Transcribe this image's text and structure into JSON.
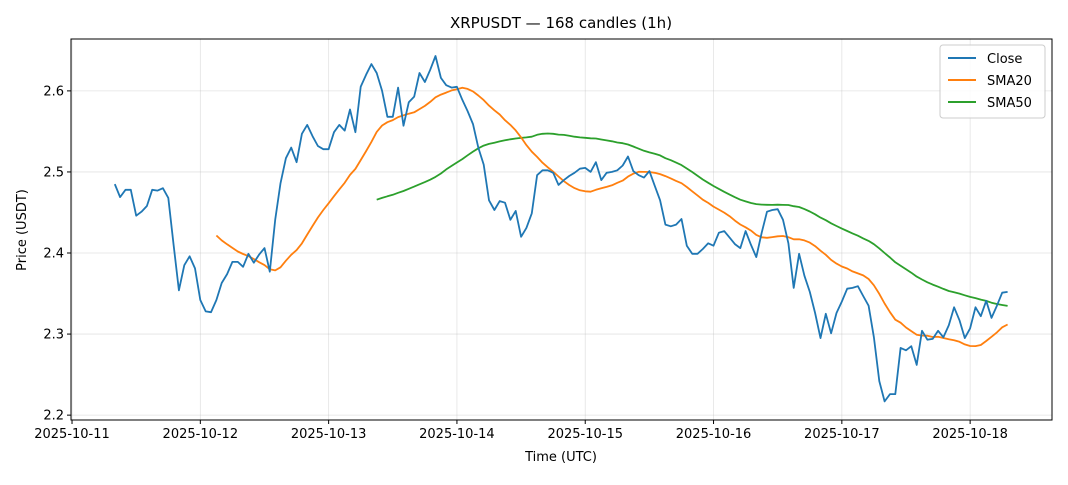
{
  "chart_data": {
    "type": "line",
    "title": "XRPUSDT — 168 candles (1h)",
    "xlabel": "Time (UTC)",
    "ylabel": "Price (USDT)",
    "start_time": "2025-10-11T08:00",
    "interval_hours": 1,
    "x_ticks": [
      "2025-10-11",
      "2025-10-12",
      "2025-10-13",
      "2025-10-14",
      "2025-10-15",
      "2025-10-16",
      "2025-10-17",
      "2025-10-18"
    ],
    "y_ticks": [
      2.2,
      2.3,
      2.4,
      2.5,
      2.6
    ],
    "ylim": [
      2.194,
      2.664
    ],
    "xlim_days_from_2025-10-11": [
      -0.008,
      7.638
    ],
    "grid": true,
    "legend_position": "top-right",
    "colors": {
      "close": "#1f77b4",
      "sma20": "#ff7f0e",
      "sma50": "#2ca02c"
    },
    "series": [
      {
        "name": "Close",
        "key": "close",
        "values": [
          2.485,
          2.469,
          2.478,
          2.478,
          2.446,
          2.451,
          2.458,
          2.478,
          2.477,
          2.48,
          2.468,
          2.41,
          2.354,
          2.385,
          2.396,
          2.381,
          2.342,
          2.328,
          2.327,
          2.342,
          2.363,
          2.374,
          2.389,
          2.389,
          2.383,
          2.399,
          2.388,
          2.398,
          2.406,
          2.377,
          2.441,
          2.486,
          2.517,
          2.53,
          2.512,
          2.547,
          2.558,
          2.544,
          2.532,
          2.528,
          2.528,
          2.549,
          2.558,
          2.551,
          2.577,
          2.549,
          2.605,
          2.62,
          2.633,
          2.622,
          2.6,
          2.568,
          2.568,
          2.604,
          2.557,
          2.586,
          2.593,
          2.622,
          2.611,
          2.626,
          2.643,
          2.616,
          2.607,
          2.604,
          2.605,
          2.589,
          2.575,
          2.559,
          2.53,
          2.509,
          2.465,
          2.453,
          2.464,
          2.462,
          2.441,
          2.452,
          2.42,
          2.431,
          2.449,
          2.496,
          2.502,
          2.502,
          2.499,
          2.484,
          2.49,
          2.495,
          2.499,
          2.504,
          2.505,
          2.5,
          2.512,
          2.49,
          2.499,
          2.5,
          2.502,
          2.508,
          2.519,
          2.501,
          2.496,
          2.493,
          2.501,
          2.483,
          2.465,
          2.435,
          2.433,
          2.435,
          2.442,
          2.409,
          2.399,
          2.399,
          2.405,
          2.412,
          2.409,
          2.425,
          2.427,
          2.419,
          2.411,
          2.406,
          2.427,
          2.41,
          2.395,
          2.425,
          2.451,
          2.453,
          2.454,
          2.441,
          2.412,
          2.357,
          2.399,
          2.372,
          2.352,
          2.326,
          2.295,
          2.325,
          2.301,
          2.326,
          2.34,
          2.356,
          2.357,
          2.359,
          2.347,
          2.335,
          2.296,
          2.242,
          2.217,
          2.226,
          2.226,
          2.283,
          2.28,
          2.285,
          2.262,
          2.304,
          2.293,
          2.294,
          2.304,
          2.296,
          2.311,
          2.333,
          2.317,
          2.295,
          2.307,
          2.333,
          2.322,
          2.341,
          2.32,
          2.335,
          2.351,
          2.352
        ]
      },
      {
        "name": "SMA20",
        "key": "sma20",
        "window": 20
      },
      {
        "name": "SMA50",
        "key": "sma50",
        "window": 50
      }
    ]
  }
}
